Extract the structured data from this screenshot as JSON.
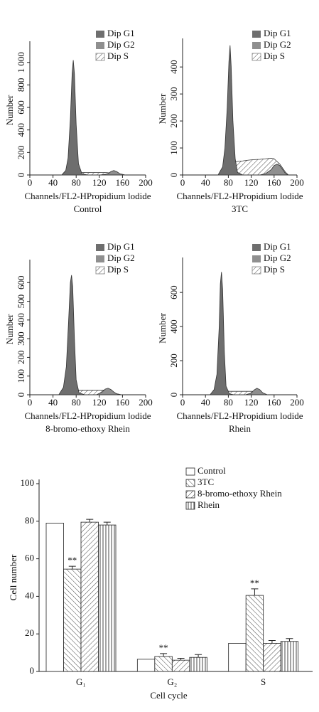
{
  "chart_data": [
    {
      "type": "area",
      "subtitle": "Control",
      "xlabel": "Channels/FL2-HPropidium lodide",
      "ylabel": "Number",
      "xlim": [
        0,
        200
      ],
      "xticks": [
        0,
        40,
        80,
        120,
        160,
        200
      ],
      "ylim": [
        0,
        1150
      ],
      "yticks": [
        0,
        200,
        400,
        600,
        800,
        {
          "value": 1000,
          "label": "1 000"
        }
      ],
      "x": [
        55,
        62,
        66,
        70,
        73,
        75,
        77,
        80,
        84,
        90,
        100,
        110,
        120,
        130,
        136,
        140,
        145,
        150,
        156,
        165
      ],
      "series": [
        {
          "name": "Dip G1",
          "color": "#6e6e6e",
          "values": [
            0,
            40,
            150,
            500,
            900,
            1020,
            900,
            450,
            100,
            10,
            0,
            0,
            0,
            0,
            0,
            0,
            0,
            0,
            0,
            0
          ]
        },
        {
          "name": "Dip G2",
          "color": "#8f8f8f",
          "values": [
            0,
            0,
            0,
            0,
            0,
            0,
            0,
            0,
            0,
            0,
            0,
            0,
            0,
            5,
            15,
            30,
            40,
            30,
            10,
            0
          ]
        },
        {
          "name": "Dip S",
          "color": "#ffffff",
          "hatch": "diagonal",
          "values": [
            0,
            0,
            0,
            5,
            10,
            15,
            20,
            22,
            22,
            22,
            22,
            22,
            22,
            22,
            20,
            15,
            10,
            5,
            0,
            0
          ]
        }
      ]
    },
    {
      "type": "area",
      "subtitle": "3TC",
      "xlabel": "Channels/FL2-HPropidium lodide",
      "ylabel": "Number",
      "xlim": [
        0,
        200
      ],
      "xticks": [
        0,
        40,
        80,
        120,
        160,
        200
      ],
      "ylim": [
        0,
        490
      ],
      "yticks": [
        0,
        100,
        200,
        300,
        400
      ],
      "x": [
        62,
        70,
        74,
        78,
        81,
        83,
        85,
        88,
        92,
        96,
        105,
        115,
        125,
        135,
        145,
        155,
        160,
        165,
        170,
        175,
        180,
        185
      ],
      "series": [
        {
          "name": "Dip G1",
          "color": "#6e6e6e",
          "values": [
            0,
            30,
            100,
            250,
            420,
            480,
            400,
            200,
            60,
            10,
            0,
            0,
            0,
            0,
            0,
            0,
            0,
            0,
            0,
            0,
            0,
            0
          ]
        },
        {
          "name": "Dip G2",
          "color": "#8f8f8f",
          "values": [
            0,
            0,
            0,
            0,
            0,
            0,
            0,
            0,
            0,
            0,
            0,
            0,
            0,
            0,
            5,
            20,
            35,
            40,
            35,
            20,
            5,
            0
          ]
        },
        {
          "name": "Dip S",
          "color": "#ffffff",
          "hatch": "diagonal",
          "values": [
            0,
            0,
            5,
            10,
            20,
            30,
            40,
            45,
            48,
            50,
            52,
            55,
            57,
            58,
            60,
            62,
            60,
            50,
            40,
            25,
            10,
            0
          ]
        }
      ]
    },
    {
      "type": "area",
      "subtitle": "8-bromo-ethoxy Rhein",
      "xlabel": "Channels/FL2-HPropidium lodide",
      "ylabel": "Number",
      "xlim": [
        0,
        200
      ],
      "xticks": [
        0,
        40,
        80,
        120,
        160,
        200
      ],
      "ylim": [
        0,
        700
      ],
      "yticks": [
        0,
        100,
        200,
        300,
        400,
        500,
        600
      ],
      "x": [
        50,
        58,
        63,
        67,
        70,
        72,
        74,
        77,
        80,
        85,
        95,
        105,
        115,
        125,
        130,
        135,
        140,
        145,
        150,
        158
      ],
      "series": [
        {
          "name": "Dip G1",
          "color": "#6e6e6e",
          "values": [
            0,
            40,
            150,
            400,
            600,
            640,
            580,
            300,
            80,
            10,
            0,
            0,
            0,
            0,
            0,
            0,
            0,
            0,
            0,
            0
          ]
        },
        {
          "name": "Dip G2",
          "color": "#8f8f8f",
          "values": [
            0,
            0,
            0,
            0,
            0,
            0,
            0,
            0,
            0,
            0,
            0,
            0,
            0,
            15,
            30,
            35,
            28,
            15,
            5,
            0
          ]
        },
        {
          "name": "Dip S",
          "color": "#ffffff",
          "hatch": "diagonal",
          "values": [
            0,
            0,
            5,
            10,
            15,
            20,
            22,
            25,
            25,
            25,
            25,
            25,
            25,
            25,
            25,
            22,
            18,
            12,
            5,
            0
          ]
        }
      ]
    },
    {
      "type": "area",
      "subtitle": "Rhein",
      "xlabel": "Channels/FL2-HPropidium lodide",
      "ylabel": "Number",
      "xlim": [
        0,
        200
      ],
      "xticks": [
        0,
        40,
        80,
        120,
        160,
        200
      ],
      "ylim": [
        0,
        780
      ],
      "yticks": [
        0,
        200,
        400,
        600
      ],
      "x": [
        48,
        55,
        60,
        64,
        66,
        68,
        70,
        73,
        76,
        82,
        90,
        100,
        110,
        120,
        125,
        130,
        135,
        140,
        148
      ],
      "series": [
        {
          "name": "Dip G1",
          "color": "#6e6e6e",
          "values": [
            0,
            30,
            120,
            400,
            650,
            720,
            620,
            250,
            50,
            5,
            0,
            0,
            0,
            0,
            0,
            0,
            0,
            0,
            0
          ]
        },
        {
          "name": "Dip G2",
          "color": "#8f8f8f",
          "values": [
            0,
            0,
            0,
            0,
            0,
            0,
            0,
            0,
            0,
            0,
            0,
            0,
            0,
            10,
            28,
            38,
            30,
            12,
            0
          ]
        },
        {
          "name": "Dip S",
          "color": "#ffffff",
          "hatch": "diagonal",
          "values": [
            0,
            0,
            5,
            10,
            15,
            18,
            20,
            22,
            22,
            20,
            20,
            20,
            20,
            20,
            20,
            18,
            12,
            5,
            0
          ]
        }
      ]
    },
    {
      "type": "bar",
      "xlabel": "Cell cycle",
      "ylabel": "Cell number",
      "categories": [
        "G₁",
        "G₂",
        "S"
      ],
      "ylim": [
        0,
        100
      ],
      "yticks": [
        0,
        20,
        40,
        60,
        80,
        100
      ],
      "series": [
        {
          "name": "Control",
          "color": "#ffffff",
          "hatch": "none",
          "values": [
            79,
            6.5,
            15
          ]
        },
        {
          "name": "3TC",
          "color": "#ffffff",
          "hatch": "back-diagonal",
          "values": [
            54.5,
            8,
            40.5
          ],
          "errors": [
            1.5,
            1.5,
            3.5
          ]
        },
        {
          "name": "8-bromo-ethoxy Rhein",
          "color": "#ffffff",
          "hatch": "diagonal",
          "values": [
            79.5,
            6,
            15
          ],
          "errors": [
            1.5,
            1,
            1.5
          ]
        },
        {
          "name": "Rhein",
          "color": "#ffffff",
          "hatch": "vertical",
          "values": [
            78,
            7.5,
            16
          ],
          "errors": [
            1.5,
            1.5,
            1.5
          ]
        }
      ],
      "annotations": [
        {
          "text": "**",
          "category": "G₁",
          "series": "3TC"
        },
        {
          "text": "**",
          "category": "G₂",
          "series": "3TC"
        },
        {
          "text": "**",
          "category": "S",
          "series": "3TC"
        }
      ]
    }
  ]
}
